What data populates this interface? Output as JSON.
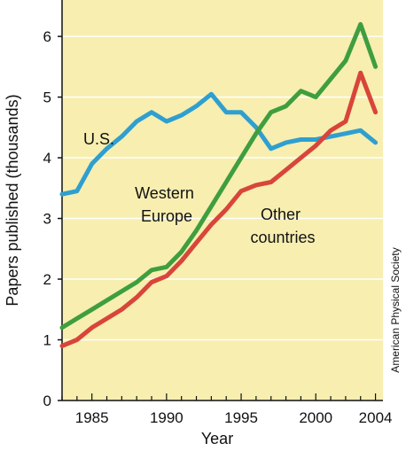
{
  "chart_data": {
    "type": "line",
    "xlabel": "Year",
    "ylabel": "Papers published (thousands)",
    "xlim": [
      1983,
      2004.5
    ],
    "ylim": [
      0,
      6.6
    ],
    "x_ticks": [
      "1985",
      "1990",
      "1995",
      "2000",
      "2004"
    ],
    "y_ticks": [
      "0",
      "1",
      "2",
      "3",
      "4",
      "5",
      "6"
    ],
    "grid": "horizontal",
    "credit": "American Physical Society",
    "colors": {
      "background": "#f7eeb0",
      "gridline": "#ffffff",
      "axis": "#111111"
    },
    "series": [
      {
        "name": "U.S.",
        "label_lines": [
          "U.S."
        ],
        "color": "#2f9fd0",
        "x": [
          1983,
          1984,
          1985,
          1986,
          1987,
          1988,
          1989,
          1990,
          1991,
          1992,
          1993,
          1994,
          1995,
          1996,
          1997,
          1998,
          1999,
          2000,
          2001,
          2002,
          2003,
          2004
        ],
        "values": [
          3.4,
          3.45,
          3.9,
          4.15,
          4.35,
          4.6,
          4.75,
          4.6,
          4.7,
          4.85,
          5.05,
          4.75,
          4.75,
          4.5,
          4.15,
          4.25,
          4.3,
          4.3,
          4.35,
          4.4,
          4.45,
          4.25
        ]
      },
      {
        "name": "Western Europe",
        "label_lines": [
          "Western",
          "Europe"
        ],
        "color": "#3f9e3f",
        "x": [
          1983,
          1984,
          1985,
          1986,
          1987,
          1988,
          1989,
          1990,
          1991,
          1992,
          1993,
          1994,
          1995,
          1996,
          1997,
          1998,
          1999,
          2000,
          2001,
          2002,
          2003,
          2004
        ],
        "values": [
          1.2,
          1.35,
          1.5,
          1.65,
          1.8,
          1.95,
          2.15,
          2.2,
          2.45,
          2.8,
          3.2,
          3.6,
          4.0,
          4.4,
          4.75,
          4.85,
          5.1,
          5.0,
          5.3,
          5.6,
          6.2,
          5.5
        ]
      },
      {
        "name": "Other countries",
        "label_lines": [
          "Other",
          "countries"
        ],
        "color": "#d8453a",
        "x": [
          1983,
          1984,
          1985,
          1986,
          1987,
          1988,
          1989,
          1990,
          1991,
          1992,
          1993,
          1994,
          1995,
          1996,
          1997,
          1998,
          1999,
          2000,
          2001,
          2002,
          2003,
          2004
        ],
        "values": [
          0.9,
          1.0,
          1.2,
          1.35,
          1.5,
          1.7,
          1.95,
          2.05,
          2.3,
          2.6,
          2.9,
          3.15,
          3.45,
          3.55,
          3.6,
          3.8,
          4.0,
          4.2,
          4.45,
          4.6,
          5.4,
          4.75
        ]
      }
    ]
  }
}
